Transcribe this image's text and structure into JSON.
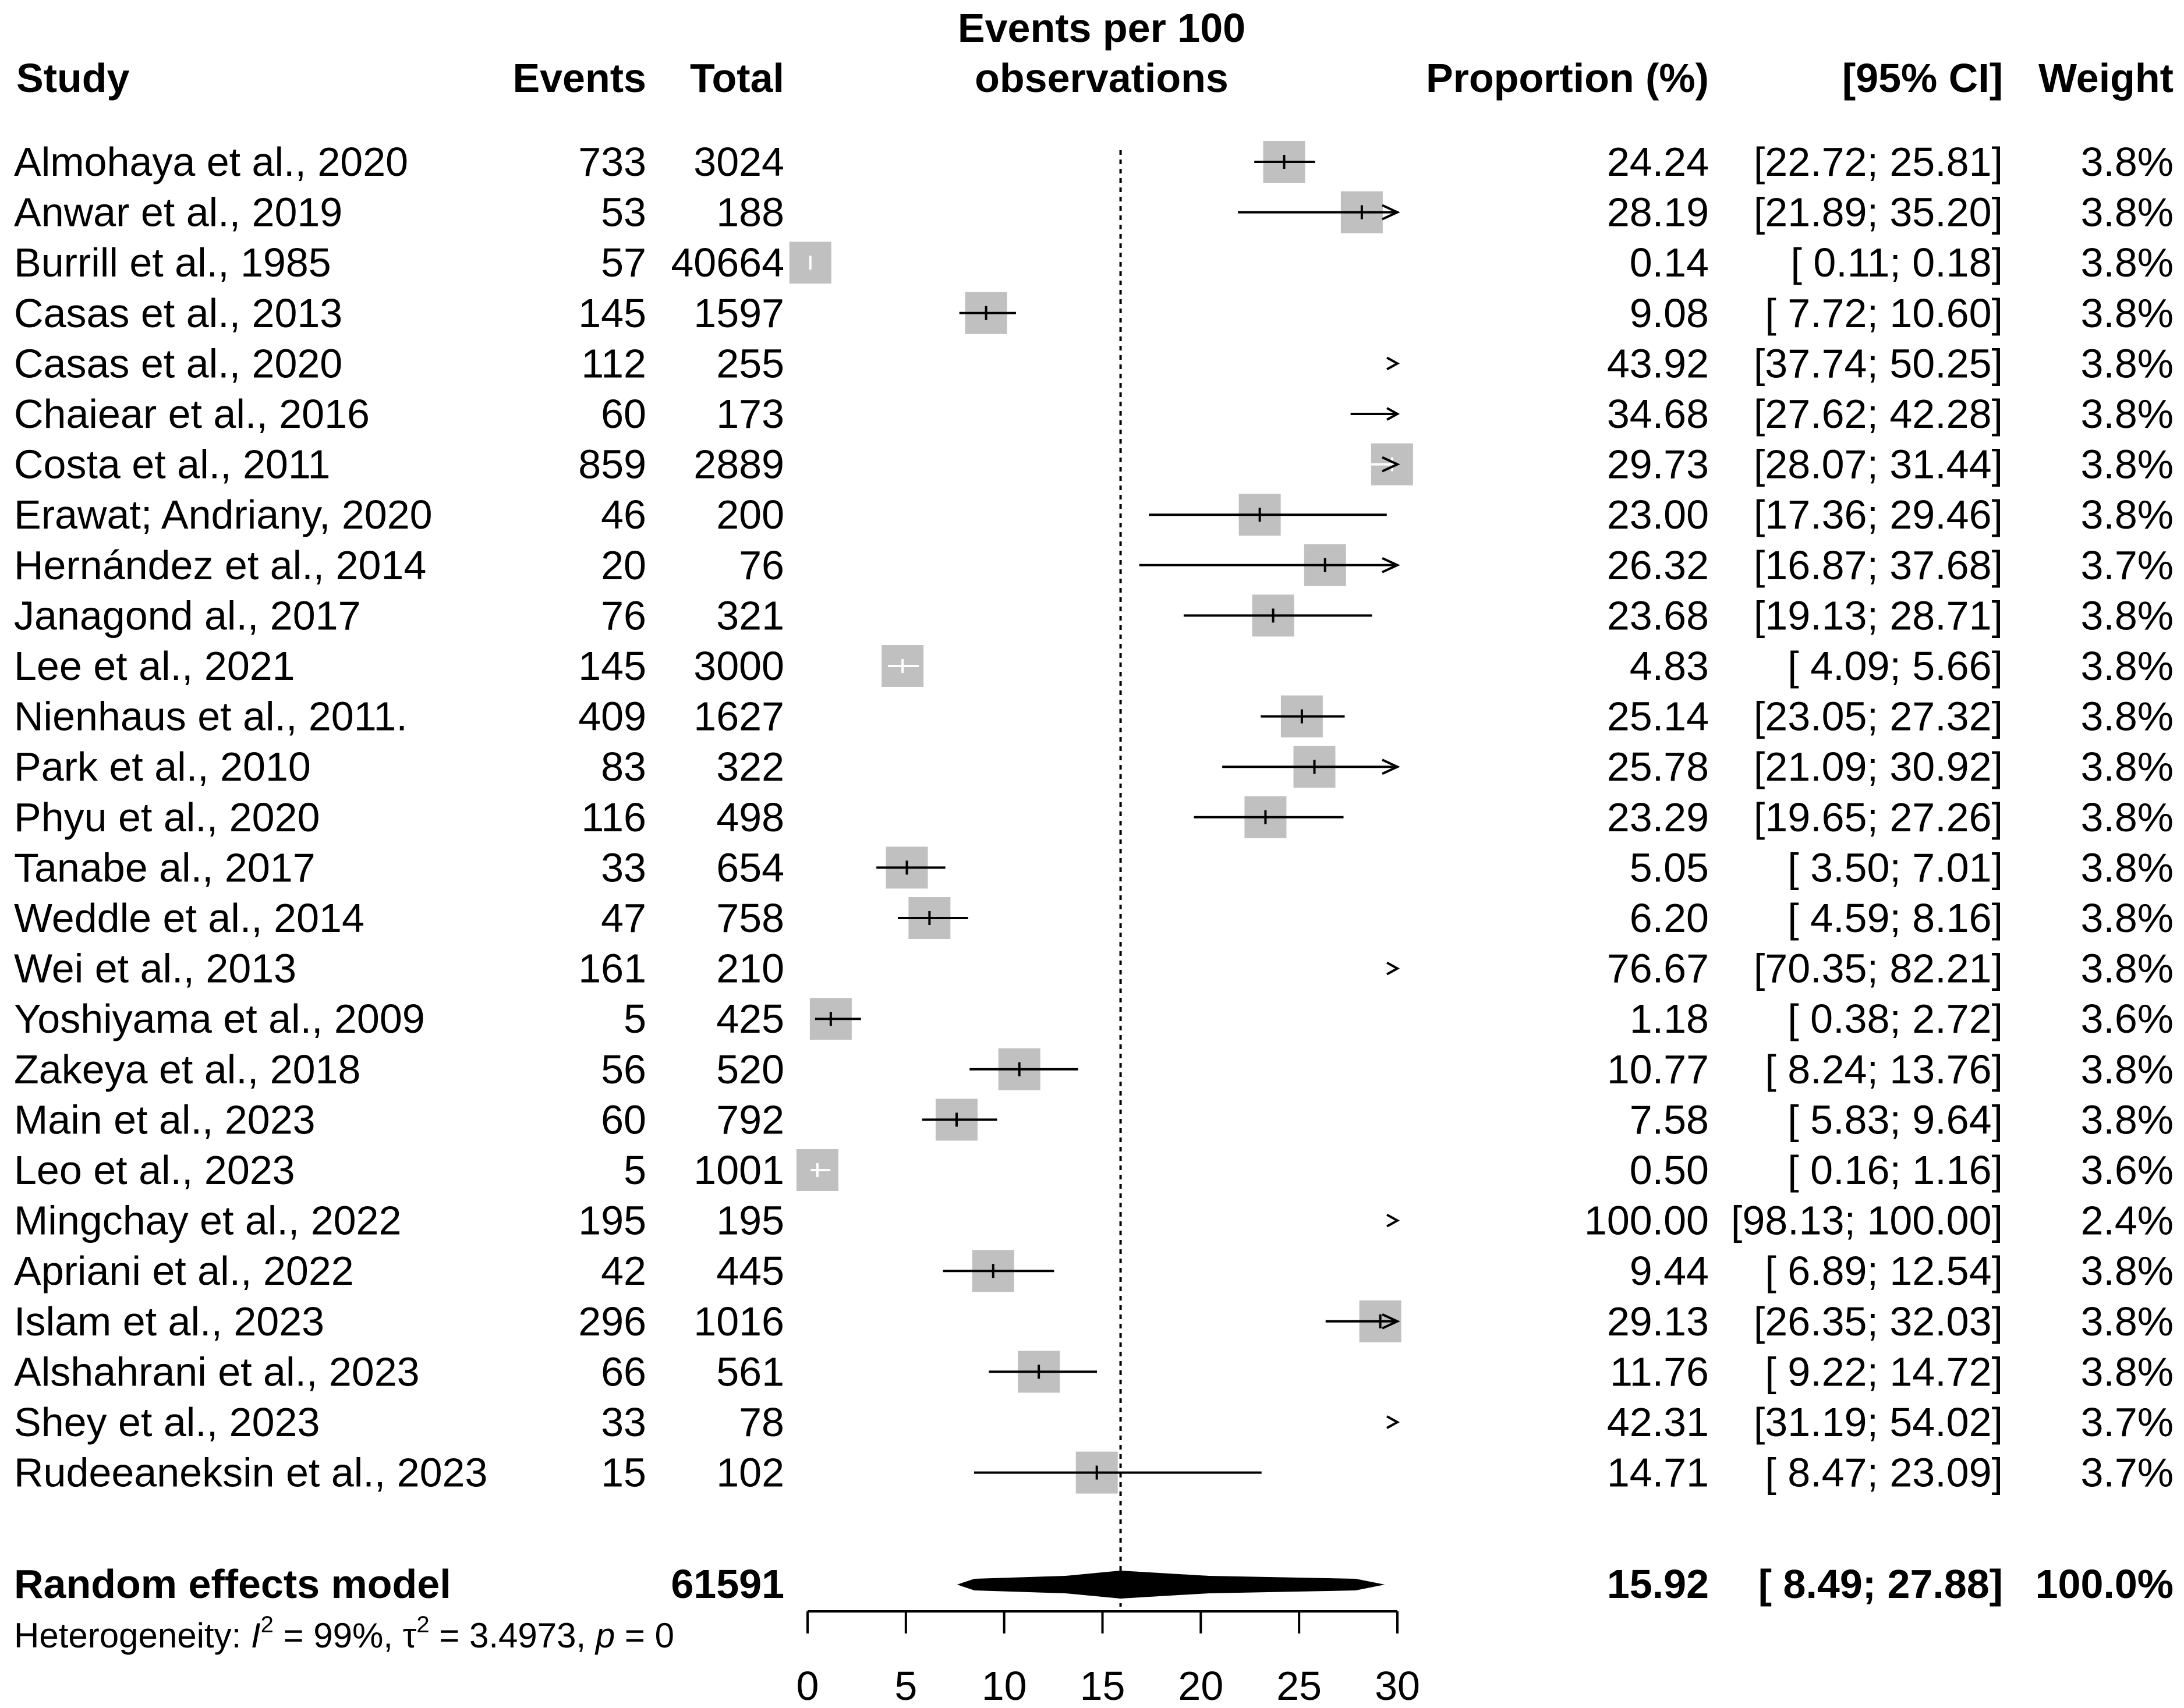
{
  "chart_data": {
    "type": "forest",
    "title": "Events per 100 observations",
    "title_lines": [
      "Events per 100",
      "observations"
    ],
    "column_headers": {
      "study": "Study",
      "events": "Events",
      "total": "Total",
      "proportion": "Proportion (%)",
      "ci": "[95% CI]",
      "weight": "Weight"
    },
    "x_axis": {
      "min": 0,
      "max": 30,
      "ticks": [
        0,
        5,
        10,
        15,
        20,
        25,
        30
      ],
      "reference_line": 15.92
    },
    "studies": [
      {
        "study": "Almohaya et al., 2020",
        "events": "733",
        "total": "3024",
        "prop": "24.24",
        "ci": "[22.72; 25.81]",
        "weight": "3.8%",
        "est": 24.24,
        "lo": 22.72,
        "hi": 25.81
      },
      {
        "study": "Anwar et al., 2019",
        "events": "53",
        "total": "188",
        "prop": "28.19",
        "ci": "[21.89; 35.20]",
        "weight": "3.8%",
        "est": 28.19,
        "lo": 21.89,
        "hi": 35.2
      },
      {
        "study": "Burrill et al., 1985",
        "events": "57",
        "total": "40664",
        "prop": "0.14",
        "ci": "[ 0.11; 0.18]",
        "weight": "3.8%",
        "est": 0.14,
        "lo": 0.11,
        "hi": 0.18
      },
      {
        "study": "Casas et al., 2013",
        "events": "145",
        "total": "1597",
        "prop": "9.08",
        "ci": "[ 7.72; 10.60]",
        "weight": "3.8%",
        "est": 9.08,
        "lo": 7.72,
        "hi": 10.6
      },
      {
        "study": "Casas et al., 2020",
        "events": "112",
        "total": "255",
        "prop": "43.92",
        "ci": "[37.74; 50.25]",
        "weight": "3.8%",
        "est": 43.92,
        "lo": 37.74,
        "hi": 50.25
      },
      {
        "study": "Chaiear et al., 2016",
        "events": "60",
        "total": "173",
        "prop": "34.68",
        "ci": "[27.62; 42.28]",
        "weight": "3.8%",
        "est": 34.68,
        "lo": 27.62,
        "hi": 42.28
      },
      {
        "study": "Costa et al., 2011",
        "events": "859",
        "total": "2889",
        "prop": "29.73",
        "ci": "[28.07; 31.44]",
        "weight": "3.8%",
        "est": 29.73,
        "lo": 28.07,
        "hi": 31.44
      },
      {
        "study": "Erawat; Andriany, 2020",
        "events": "46",
        "total": "200",
        "prop": "23.00",
        "ci": "[17.36; 29.46]",
        "weight": "3.8%",
        "est": 23.0,
        "lo": 17.36,
        "hi": 29.46
      },
      {
        "study": "Hernández et al., 2014",
        "events": "20",
        "total": "76",
        "prop": "26.32",
        "ci": "[16.87; 37.68]",
        "weight": "3.7%",
        "est": 26.32,
        "lo": 16.87,
        "hi": 37.68
      },
      {
        "study": "Janagond al., 2017",
        "events": "76",
        "total": "321",
        "prop": "23.68",
        "ci": "[19.13; 28.71]",
        "weight": "3.8%",
        "est": 23.68,
        "lo": 19.13,
        "hi": 28.71
      },
      {
        "study": "Lee et al., 2021",
        "events": "145",
        "total": "3000",
        "prop": "4.83",
        "ci": "[ 4.09; 5.66]",
        "weight": "3.8%",
        "est": 4.83,
        "lo": 4.09,
        "hi": 5.66
      },
      {
        "study": "Nienhaus et al., 2011.",
        "events": "409",
        "total": "1627",
        "prop": "25.14",
        "ci": "[23.05; 27.32]",
        "weight": "3.8%",
        "est": 25.14,
        "lo": 23.05,
        "hi": 27.32
      },
      {
        "study": "Park et al., 2010",
        "events": "83",
        "total": "322",
        "prop": "25.78",
        "ci": "[21.09; 30.92]",
        "weight": "3.8%",
        "est": 25.78,
        "lo": 21.09,
        "hi": 30.92
      },
      {
        "study": "Phyu et al., 2020",
        "events": "116",
        "total": "498",
        "prop": "23.29",
        "ci": "[19.65; 27.26]",
        "weight": "3.8%",
        "est": 23.29,
        "lo": 19.65,
        "hi": 27.26
      },
      {
        "study": "Tanabe al., 2017",
        "events": "33",
        "total": "654",
        "prop": "5.05",
        "ci": "[ 3.50; 7.01]",
        "weight": "3.8%",
        "est": 5.05,
        "lo": 3.5,
        "hi": 7.01
      },
      {
        "study": "Weddle et al., 2014",
        "events": "47",
        "total": "758",
        "prop": "6.20",
        "ci": "[ 4.59; 8.16]",
        "weight": "3.8%",
        "est": 6.2,
        "lo": 4.59,
        "hi": 8.16
      },
      {
        "study": "Wei et al., 2013",
        "events": "161",
        "total": "210",
        "prop": "76.67",
        "ci": "[70.35; 82.21]",
        "weight": "3.8%",
        "est": 76.67,
        "lo": 70.35,
        "hi": 82.21
      },
      {
        "study": "Yoshiyama et al., 2009",
        "events": "5",
        "total": "425",
        "prop": "1.18",
        "ci": "[ 0.38; 2.72]",
        "weight": "3.6%",
        "est": 1.18,
        "lo": 0.38,
        "hi": 2.72
      },
      {
        "study": "Zakeya et al., 2018",
        "events": "56",
        "total": "520",
        "prop": "10.77",
        "ci": "[ 8.24; 13.76]",
        "weight": "3.8%",
        "est": 10.77,
        "lo": 8.24,
        "hi": 13.76
      },
      {
        "study": "Main et al., 2023",
        "events": "60",
        "total": "792",
        "prop": "7.58",
        "ci": "[ 5.83; 9.64]",
        "weight": "3.8%",
        "est": 7.58,
        "lo": 5.83,
        "hi": 9.64
      },
      {
        "study": "Leo et al., 2023",
        "events": "5",
        "total": "1001",
        "prop": "0.50",
        "ci": "[ 0.16; 1.16]",
        "weight": "3.6%",
        "est": 0.5,
        "lo": 0.16,
        "hi": 1.16
      },
      {
        "study": "Mingchay et al., 2022",
        "events": "195",
        "total": "195",
        "prop": "100.00",
        "ci": "[98.13; 100.00]",
        "weight": "2.4%",
        "est": 100.0,
        "lo": 98.13,
        "hi": 100.0
      },
      {
        "study": "Apriani et al., 2022",
        "events": "42",
        "total": "445",
        "prop": "9.44",
        "ci": "[ 6.89; 12.54]",
        "weight": "3.8%",
        "est": 9.44,
        "lo": 6.89,
        "hi": 12.54
      },
      {
        "study": "Islam et al., 2023",
        "events": "296",
        "total": "1016",
        "prop": "29.13",
        "ci": "[26.35; 32.03]",
        "weight": "3.8%",
        "est": 29.13,
        "lo": 26.35,
        "hi": 32.03
      },
      {
        "study": "Alshahrani et al., 2023",
        "events": "66",
        "total": "561",
        "prop": "11.76",
        "ci": "[ 9.22; 14.72]",
        "weight": "3.8%",
        "est": 11.76,
        "lo": 9.22,
        "hi": 14.72
      },
      {
        "study": "Shey et al., 2023",
        "events": "33",
        "total": "78",
        "prop": "42.31",
        "ci": "[31.19; 54.02]",
        "weight": "3.7%",
        "est": 42.31,
        "lo": 31.19,
        "hi": 54.02
      },
      {
        "study": "Rudeeaneksin et al., 2023",
        "events": "15",
        "total": "102",
        "prop": "14.71",
        "ci": "[ 8.47; 23.09]",
        "weight": "3.7%",
        "est": 14.71,
        "lo": 8.47,
        "hi": 23.09
      }
    ],
    "summary": {
      "label": "Random effects model",
      "total": "61591",
      "prop": "15.92",
      "ci": "[ 8.49; 27.88]",
      "weight": "100.0%",
      "est": 15.92,
      "lo": 8.49,
      "hi": 27.88,
      "pred_lo": 8.49,
      "pred_hi": 27.88
    },
    "heterogeneity": {
      "prefix": "Heterogeneity: ",
      "i2_label": "I",
      "i2_sup": "2",
      "i2_value": " = 99%, ",
      "tau_label": "τ",
      "tau_sup": "2",
      "tau_value": " = 3.4973, ",
      "p_label": "p",
      "p_value": " = 0"
    }
  }
}
